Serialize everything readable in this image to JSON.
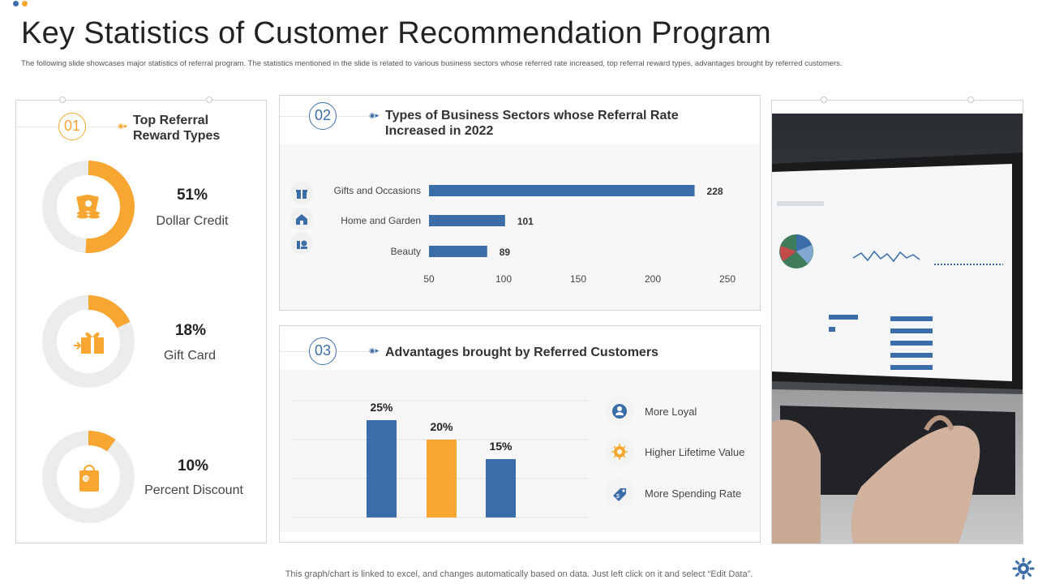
{
  "header": {
    "title": "Key Statistics of Customer Recommendation Program",
    "subtitle": "The following slide showcases major statistics of referral program. The statistics mentioned in the slide is related to various business sectors whose referred rate increased, top referral reward types, advantages brought by referred customers."
  },
  "section1": {
    "number": "01",
    "title_line1": "Top Referral",
    "title_line2": "Reward Types",
    "rewards": [
      {
        "pct_label": "51%",
        "label": "Dollar Credit",
        "value": 51,
        "icon": "money-stack-icon"
      },
      {
        "pct_label": "18%",
        "label": "Gift Card",
        "value": 18,
        "icon": "gift-card-icon"
      },
      {
        "pct_label": "10%",
        "label": "Percent Discount",
        "value": 10,
        "icon": "discount-bag-icon"
      }
    ]
  },
  "section2": {
    "number": "02",
    "title_line1": "Types of Business Sectors  whose Referral Rate",
    "title_line2": "Increased in 2022"
  },
  "section3": {
    "number": "03",
    "title": "Advantages brought by Referred Customers",
    "advantages": [
      {
        "label": "More Loyal",
        "icon": "loyal-customer-icon"
      },
      {
        "label": "Higher Lifetime Value",
        "icon": "lifetime-value-icon"
      },
      {
        "label": "More Spending Rate",
        "icon": "spending-tag-icon"
      }
    ]
  },
  "chart_data": [
    {
      "type": "bar",
      "orientation": "horizontal",
      "categories": [
        "Gifts and Occasions",
        "Home and Garden",
        "Beauty"
      ],
      "values": [
        228,
        101,
        89
      ],
      "xlim": [
        50,
        250
      ],
      "xticks": [
        50,
        100,
        150,
        200,
        250
      ],
      "category_icons": [
        "gift-icon",
        "home-icon",
        "beauty-icon"
      ],
      "color": "#3b6ea8",
      "grid": false
    },
    {
      "type": "bar",
      "orientation": "vertical",
      "values": [
        25,
        20,
        15
      ],
      "data_labels": [
        "25%",
        "20%",
        "15%"
      ],
      "colors": [
        "#3b6ea8",
        "#f7a731",
        "#3b6ea8"
      ],
      "ylim": [
        0,
        30
      ],
      "grid": true
    }
  ],
  "footer": {
    "note": "This graph/chart is linked to excel,  and changes automatically based on data. Just left click on it and select “Edit Data”."
  },
  "colors": {
    "blue": "#3b6ea8",
    "orange": "#f7a731",
    "track": "#ececec"
  }
}
